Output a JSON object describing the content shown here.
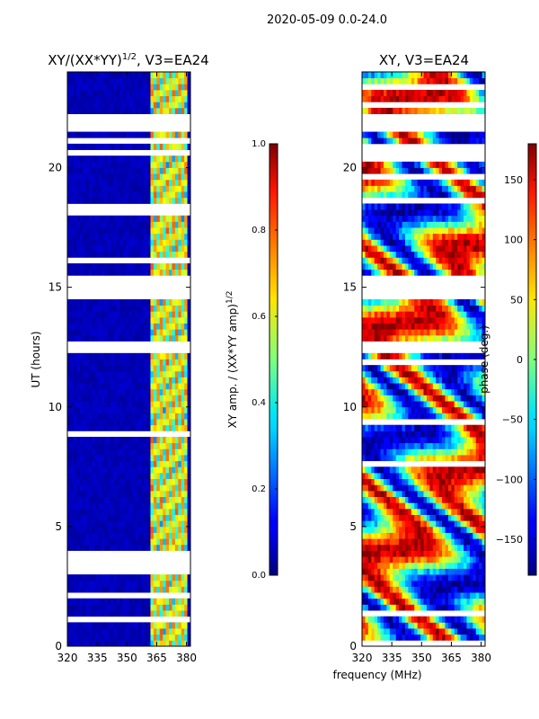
{
  "figure_title": "2020-05-09 0.0-24.0",
  "chart_data": [
    {
      "type": "heatmap",
      "title": "XY/(XX*YY)^{1/2}, V3=EA24",
      "xlabel": "",
      "ylabel": "UT (hours)",
      "xlim": [
        320,
        382
      ],
      "ylim": [
        0,
        24
      ],
      "xticks": [
        320,
        335,
        350,
        365,
        380
      ],
      "yticks": [
        0,
        5,
        10,
        15,
        20
      ],
      "colorbar": {
        "label": "XY amp. / (XX*YY amp)^{1/2}",
        "range": [
          0.0,
          1.0
        ],
        "ticks": [
          "0.0",
          "0.2",
          "0.4",
          "0.6",
          "0.8",
          "1.0"
        ],
        "colormap": "jet"
      },
      "blank_time_ranges_hours": [
        [
          12.2,
          12.8
        ],
        [
          14.5,
          15.6
        ],
        [
          21.5,
          22.3
        ]
      ],
      "notable_columns": {
        "bright_band_mhz": [
          362,
          380
        ]
      }
    },
    {
      "type": "heatmap",
      "title": "XY, V3=EA24",
      "xlabel": "frequency (MHz)",
      "ylabel": "",
      "xlim": [
        320,
        382
      ],
      "ylim": [
        0,
        24
      ],
      "xticks": [
        320,
        335,
        350,
        365,
        380
      ],
      "yticks": [
        0,
        5,
        10,
        15,
        20
      ],
      "colorbar": {
        "label": "phase (deg.)",
        "range": [
          -180,
          180
        ],
        "ticks": [
          "150",
          "100",
          "50",
          "0",
          "−50",
          "−100",
          "−150"
        ],
        "tick_values": [
          150,
          100,
          50,
          0,
          -50,
          -100,
          -150
        ],
        "colormap": "jet"
      },
      "blank_time_ranges_hours": [
        [
          12.2,
          12.8
        ],
        [
          14.5,
          15.6
        ],
        [
          21.5,
          22.3
        ]
      ]
    }
  ],
  "colors": {
    "jet_low": "#00007f",
    "jet_mid": "#7fff7f",
    "jet_high": "#7f0000"
  }
}
